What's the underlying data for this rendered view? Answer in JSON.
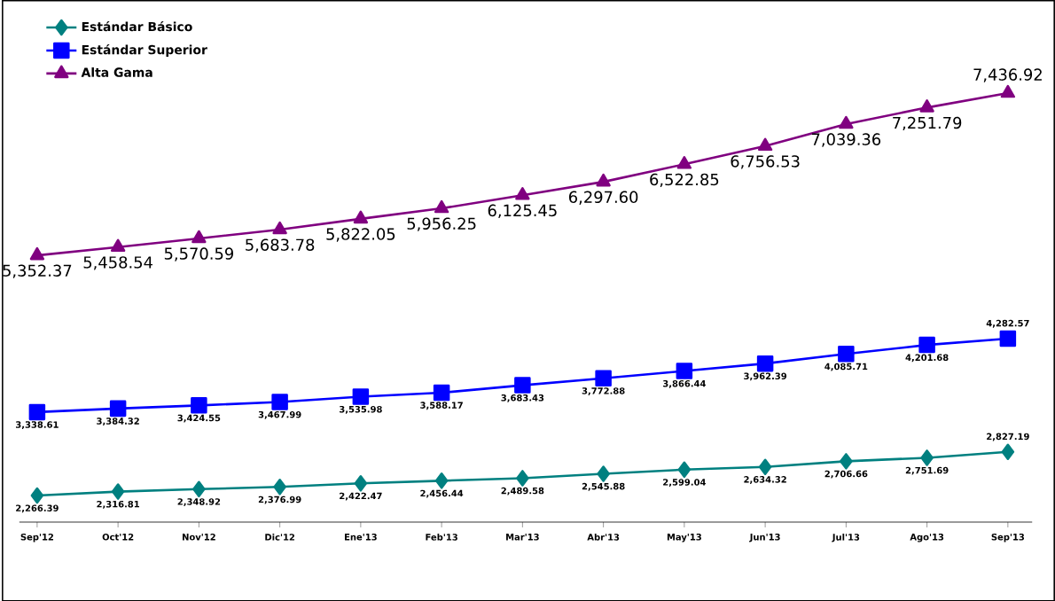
{
  "chart_data": {
    "type": "line",
    "categories": [
      "Sep'12",
      "Oct'12",
      "Nov'12",
      "Dic'12",
      "Ene'13",
      "Feb'13",
      "Mar'13",
      "Abr'13",
      "May'13",
      "Jun'13",
      "Jul'13",
      "Ago'13",
      "Sep'13"
    ],
    "series": [
      {
        "name": "Estándar Básico",
        "color": "#008080",
        "marker": "diamond",
        "values": [
          2266.39,
          2316.81,
          2348.92,
          2376.99,
          2422.47,
          2456.44,
          2489.58,
          2545.88,
          2599.04,
          2634.32,
          2706.66,
          2751.69,
          2827.19
        ],
        "value_labels": [
          "2,266.39",
          "2,316.81",
          "2,348.92",
          "2,376.99",
          "2,422.47",
          "2,456.44",
          "2,489.58",
          "2,545.88",
          "2,599.04",
          "2,634.32",
          "2,706.66",
          "2,751.69",
          "2,827.19"
        ]
      },
      {
        "name": "Estándar Superior",
        "color": "#0000ff",
        "marker": "square",
        "values": [
          3338.61,
          3384.32,
          3424.55,
          3467.99,
          3535.98,
          3588.17,
          3683.43,
          3772.88,
          3866.44,
          3962.39,
          4085.71,
          4201.68,
          4282.57
        ],
        "value_labels": [
          "3,338.61",
          "3,384.32",
          "3,424.55",
          "3,467.99",
          "3,535.98",
          "3,588.17",
          "3,683.43",
          "3,772.88",
          "3,866.44",
          "3,962.39",
          "4,085.71",
          "4,201.68",
          "4,282.57"
        ]
      },
      {
        "name": "Alta Gama",
        "color": "#800080",
        "marker": "triangle",
        "values": [
          5352.37,
          5458.54,
          5570.59,
          5683.78,
          5822.05,
          5956.25,
          6125.45,
          6297.6,
          6522.85,
          6756.53,
          7039.36,
          7251.79,
          7436.92
        ],
        "value_labels": [
          "5,352.37",
          "5,458.54",
          "5,570.59",
          "5,683.78",
          "5,822.05",
          "5,956.25",
          "6,125.45",
          "6,297.60",
          "6,522.85",
          "6,756.53",
          "7,039.36",
          "7,251.79",
          "7,436.92"
        ]
      }
    ],
    "grid": false,
    "legend": "top left",
    "tick_labels": "x"
  }
}
